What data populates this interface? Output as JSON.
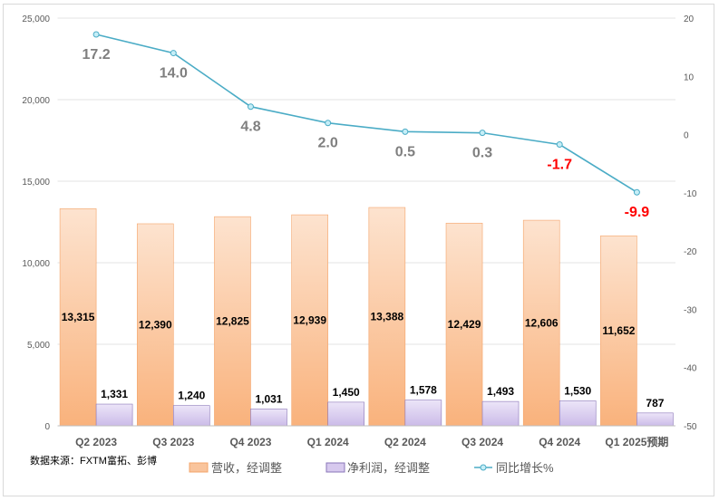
{
  "chart_data": {
    "type": "bar+line",
    "categories": [
      "Q2 2023",
      "Q3 2023",
      "Q4 2023",
      "Q1 2024",
      "Q2 2024",
      "Q3 2024",
      "Q4 2024",
      "Q1 2025预期"
    ],
    "series": [
      {
        "name": "营收，经调整",
        "type": "bar",
        "axis": "left",
        "color": "#f9b98a",
        "values": [
          13315,
          12390,
          12825,
          12939,
          13388,
          12429,
          12606,
          11652
        ],
        "labels": [
          "13,315",
          "12,390",
          "12,825",
          "12,939",
          "13,388",
          "12,429",
          "12,606",
          "11,652"
        ]
      },
      {
        "name": "净利润，经调整",
        "type": "bar",
        "axis": "left",
        "color": "#d7c9ee",
        "values": [
          1331,
          1240,
          1031,
          1450,
          1578,
          1493,
          1530,
          787
        ],
        "labels": [
          "1,331",
          "1,240",
          "1,031",
          "1,450",
          "1,578",
          "1,493",
          "1,530",
          "787"
        ]
      },
      {
        "name": "同比增长%",
        "type": "line",
        "axis": "right",
        "color": "#4bacc6",
        "values": [
          17.2,
          14.0,
          4.8,
          2.0,
          0.5,
          0.3,
          -1.7,
          -9.9
        ],
        "labels": [
          "17.2",
          "14.0",
          "4.8",
          "2.0",
          "0.5",
          "0.3",
          "-1.7",
          "-9.9"
        ]
      }
    ],
    "left_axis": {
      "range": [
        0,
        25000
      ],
      "ticks": [
        "0",
        "5,000",
        "10,000",
        "15,000",
        "20,000",
        "25,000"
      ]
    },
    "right_axis": {
      "range": [
        -50,
        20
      ],
      "ticks": [
        "-50",
        "-40",
        "-30",
        "-20",
        "-10",
        "0",
        "10",
        "20"
      ]
    },
    "grid": true,
    "legend_position": "bottom",
    "negative_label_color": "#ff0000",
    "positive_label_color": "#7f7f7f"
  },
  "source_note": "数据来源：FXTM富拓、彭博"
}
